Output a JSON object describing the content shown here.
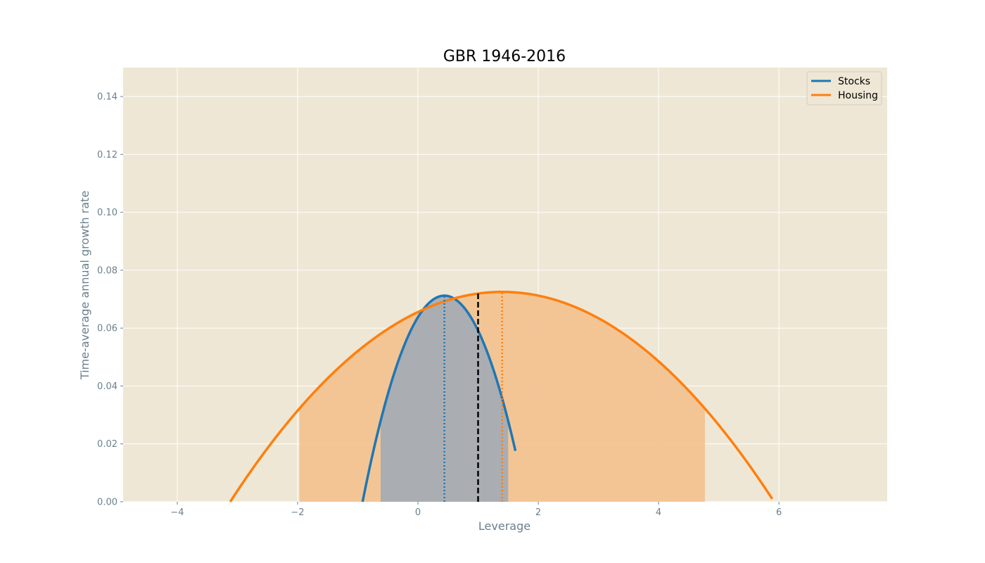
{
  "chart_data": {
    "type": "line",
    "title": "GBR 1946-2016",
    "xlabel": "Leverage",
    "ylabel": "Time-average annual growth rate",
    "xlim": [
      -4.9,
      7.8
    ],
    "ylim": [
      0.0,
      0.15
    ],
    "xticks": [
      -4,
      -2,
      0,
      2,
      4,
      6
    ],
    "xtick_labels": [
      "−4",
      "−2",
      "0",
      "2",
      "4",
      "6"
    ],
    "yticks": [
      0.0,
      0.02,
      0.04,
      0.06,
      0.08,
      0.1,
      0.12,
      0.14
    ],
    "ytick_labels": [
      "0.00",
      "0.02",
      "0.04",
      "0.06",
      "0.08",
      "0.10",
      "0.12",
      "0.14"
    ],
    "grid": true,
    "legend_position": "top-right",
    "reference_line": {
      "x": 1.0,
      "style": "dashed",
      "color": "#000000"
    },
    "series": [
      {
        "name": "Stocks",
        "color": "#1f77b4",
        "curve": {
          "type": "parabola",
          "vertex_x": 0.44,
          "vertex_y": 0.0712,
          "root_left": -0.92
        },
        "x_range": [
          -0.92,
          1.62
        ],
        "optimum_x": 0.44,
        "shaded_range": [
          -0.62,
          1.5
        ],
        "fill_color": "#a2aab4"
      },
      {
        "name": "Housing",
        "color": "#ff7f0e",
        "curve": {
          "type": "parabola",
          "vertex_x": 1.4,
          "vertex_y": 0.0725,
          "root_left": -3.12
        },
        "x_range": [
          -3.12,
          6.12
        ],
        "optimum_x": 1.4,
        "shaded_range": [
          -1.97,
          4.77
        ],
        "fill_color": "#f3c18e"
      }
    ]
  }
}
